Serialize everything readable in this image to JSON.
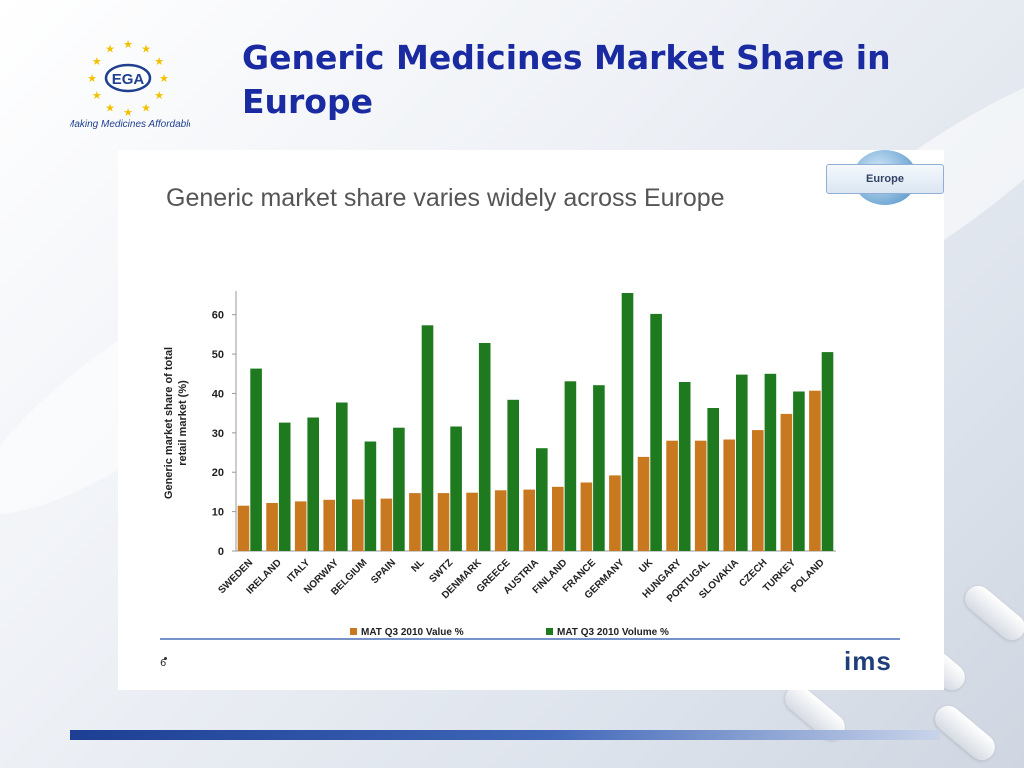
{
  "slide": {
    "title": "Generic Medicines Market Share in Europe",
    "logo_text": "EGA",
    "logo_tagline": "Making Medicines Affordable",
    "badge": "Europe",
    "brand": "ims",
    "page_number": "6"
  },
  "colors": {
    "title": "#1a2aa0",
    "value_series": "#c8781e",
    "volume_series": "#1f7a1f",
    "logo_star": "#f2c200",
    "logo_blue": "#1f3f8f"
  },
  "chart_data": {
    "type": "bar",
    "title": "Generic market share varies widely across Europe",
    "ylabel": "Generic market share of total retail market (%)",
    "xlabel": "",
    "ylim": [
      0,
      65
    ],
    "yticks": [
      0,
      10,
      20,
      30,
      40,
      50,
      60
    ],
    "grid": false,
    "legend_position": "bottom",
    "categories": [
      "SWEDEN",
      "IRELAND",
      "ITALY",
      "NORWAY",
      "BELGIUM",
      "SPAIN",
      "NL",
      "SWTZ",
      "DENMARK",
      "GREECE",
      "AUSTRIA",
      "FINLAND",
      "FRANCE",
      "GERMANY",
      "UK",
      "HUNGARY",
      "PORTUGAL",
      "SLOVAKIA",
      "CZECH",
      "TURKEY",
      "POLAND"
    ],
    "series": [
      {
        "name": "MAT Q3 2010 Value %",
        "color": "#c8781e",
        "values": [
          11.5,
          12.2,
          12.6,
          13.0,
          13.1,
          13.3,
          14.7,
          14.7,
          14.8,
          15.4,
          15.6,
          16.3,
          17.4,
          19.2,
          23.9,
          28.0,
          28.0,
          28.3,
          30.7,
          34.8,
          40.7
        ]
      },
      {
        "name": "MAT Q3 2010 Volume %",
        "color": "#1f7a1f",
        "values": [
          46.3,
          32.6,
          33.9,
          37.7,
          27.8,
          31.3,
          57.3,
          31.6,
          52.8,
          38.4,
          26.1,
          43.1,
          42.1,
          65.5,
          60.2,
          42.9,
          36.3,
          44.8,
          45.0,
          40.5,
          50.5
        ]
      }
    ]
  }
}
